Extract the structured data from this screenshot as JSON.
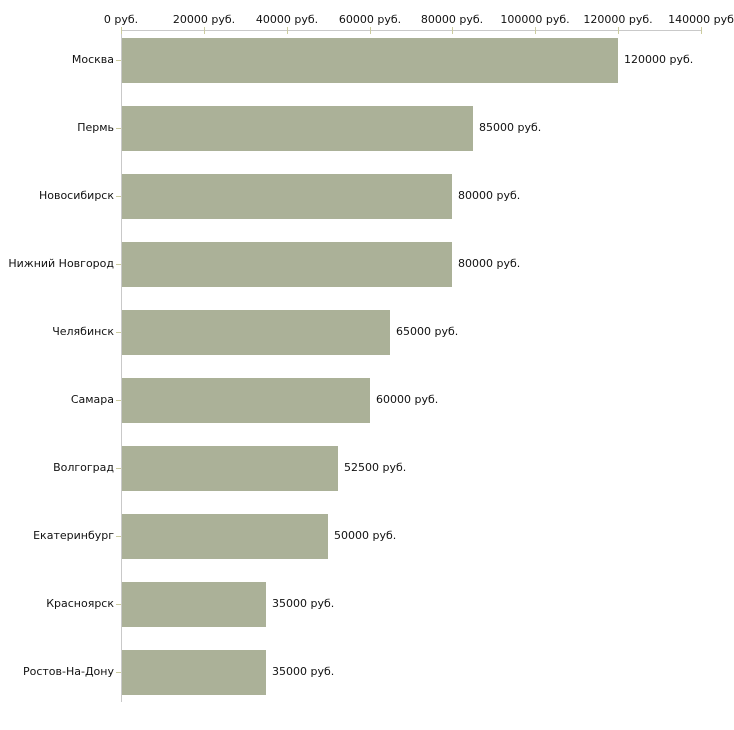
{
  "chart_data": {
    "type": "bar",
    "orientation": "horizontal",
    "title": "",
    "categories": [
      "Москва",
      "Пермь",
      "Новосибирск",
      "Нижний Новгород",
      "Челябинск",
      "Самара",
      "Волгоград",
      "Екатеринбург",
      "Красноярск",
      "Ростов-На-Дону"
    ],
    "values": [
      120000,
      85000,
      80000,
      80000,
      65000,
      60000,
      52500,
      50000,
      35000,
      35000
    ],
    "value_labels": [
      "120000 руб.",
      "85000 руб.",
      "80000 руб.",
      "80000 руб.",
      "65000 руб.",
      "60000 руб.",
      "52500 руб.",
      "50000 руб.",
      "35000 руб.",
      "35000 руб."
    ],
    "x_axis": {
      "position": "top",
      "min": 0,
      "max": 140000,
      "ticks": [
        0,
        20000,
        40000,
        60000,
        80000,
        100000,
        120000,
        140000
      ],
      "tick_labels": [
        "0 руб.",
        "20000 руб.",
        "40000 руб.",
        "60000 руб.",
        "80000 руб.",
        "100000 руб.",
        "120000 руб.",
        "140000 руб"
      ]
    },
    "grid": false,
    "legend": false,
    "colors": {
      "bar": "#abb198",
      "axis_line": "#c9c9c9",
      "tick_mark": "#cbcb9e",
      "text": "#111111",
      "background": "#ffffff"
    }
  }
}
